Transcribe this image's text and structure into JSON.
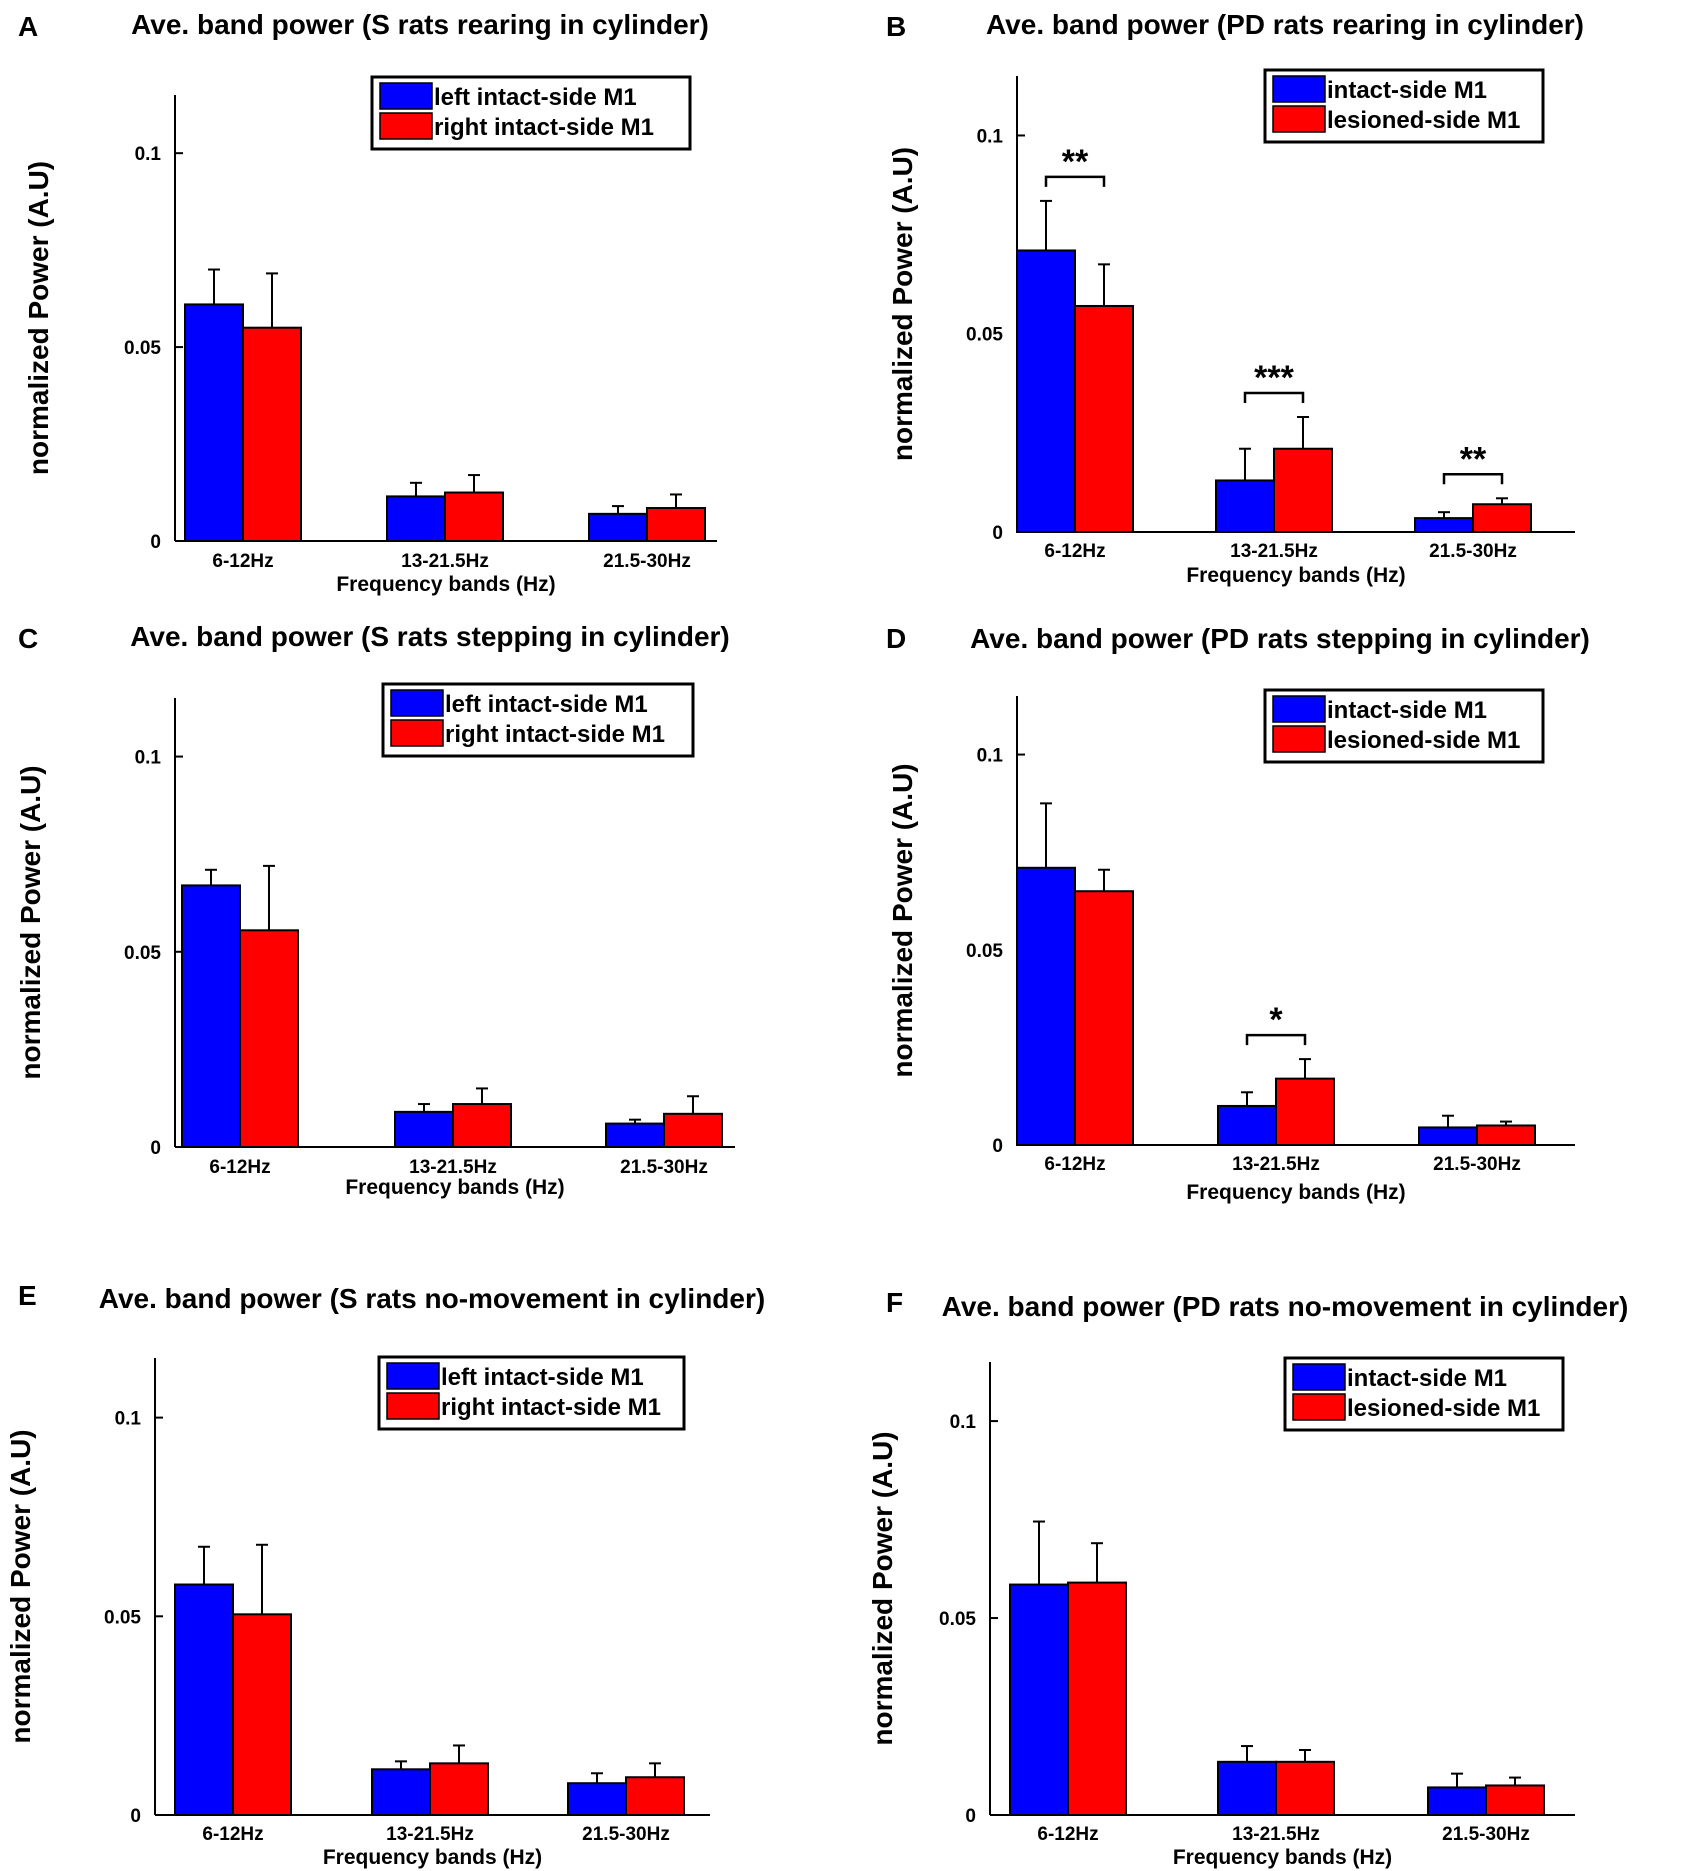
{
  "colors": {
    "blue": "#0000ff",
    "red": "#ff0000",
    "axis": "#000000"
  },
  "chart_data": [
    {
      "type": "bar",
      "panel_label": "A",
      "title": "Ave. band power (S rats rearing in cylinder)",
      "xlabel": "Frequency bands (Hz)",
      "ylabel": "normalized Power (A.U)",
      "ylim": [
        0,
        0.115
      ],
      "yticks": [
        "0",
        "0.05",
        "0.1"
      ],
      "categories": [
        "6-12Hz",
        "13-21.5Hz",
        "21.5-30Hz"
      ],
      "series": [
        {
          "name": "left intact-side M1",
          "color": "#0000ff",
          "values": [
            0.061,
            0.0115,
            0.007
          ],
          "errors": [
            0.009,
            0.0035,
            0.002
          ]
        },
        {
          "name": "right intact-side M1",
          "color": "#ff0000",
          "values": [
            0.055,
            0.0125,
            0.0085
          ],
          "errors": [
            0.014,
            0.0045,
            0.0035
          ]
        }
      ],
      "significance": []
    },
    {
      "type": "bar",
      "panel_label": "B",
      "title": "Ave. band power (PD rats rearing in cylinder)",
      "xlabel": "Frequency bands (Hz)",
      "ylabel": "normalized Power (A.U)",
      "ylim": [
        0,
        0.115
      ],
      "yticks": [
        "0",
        "0.05",
        "0.1"
      ],
      "categories": [
        "6-12Hz",
        "13-21.5Hz",
        "21.5-30Hz"
      ],
      "series": [
        {
          "name": "intact-side M1",
          "color": "#0000ff",
          "values": [
            0.071,
            0.013,
            0.0035
          ],
          "errors": [
            0.0125,
            0.008,
            0.0015
          ]
        },
        {
          "name": "lesioned-side M1",
          "color": "#ff0000",
          "values": [
            0.057,
            0.021,
            0.007
          ],
          "errors": [
            0.0105,
            0.008,
            0.0015
          ]
        }
      ],
      "significance": [
        {
          "category": 0,
          "label": "**"
        },
        {
          "category": 1,
          "label": "***"
        },
        {
          "category": 2,
          "label": "**"
        }
      ]
    },
    {
      "type": "bar",
      "panel_label": "C",
      "title": "Ave. band power (S rats stepping in cylinder)",
      "xlabel": "Frequency bands (Hz)",
      "ylabel": "normalized Power (A.U)",
      "ylim": [
        0,
        0.115
      ],
      "yticks": [
        "0",
        "0.05",
        "0.1"
      ],
      "categories": [
        "6-12Hz",
        "13-21.5Hz",
        "21.5-30Hz"
      ],
      "series": [
        {
          "name": "left intact-side M1",
          "color": "#0000ff",
          "values": [
            0.067,
            0.009,
            0.006
          ],
          "errors": [
            0.004,
            0.002,
            0.001
          ]
        },
        {
          "name": "right intact-side M1",
          "color": "#ff0000",
          "values": [
            0.0555,
            0.011,
            0.0085
          ],
          "errors": [
            0.0165,
            0.004,
            0.0045
          ]
        }
      ],
      "significance": []
    },
    {
      "type": "bar",
      "panel_label": "D",
      "title": "Ave. band power (PD rats stepping in cylinder)",
      "xlabel": "Frequency bands (Hz)",
      "ylabel": "normalized Power (A.U)",
      "ylim": [
        0,
        0.115
      ],
      "yticks": [
        "0",
        "0.05",
        "0.1"
      ],
      "categories": [
        "6-12Hz",
        "13-21.5Hz",
        "21.5-30Hz"
      ],
      "series": [
        {
          "name": "intact-side M1",
          "color": "#0000ff",
          "values": [
            0.071,
            0.01,
            0.0045
          ],
          "errors": [
            0.0165,
            0.0035,
            0.003
          ]
        },
        {
          "name": "lesioned-side M1",
          "color": "#ff0000",
          "values": [
            0.065,
            0.017,
            0.005
          ],
          "errors": [
            0.0055,
            0.005,
            0.001
          ]
        }
      ],
      "significance": [
        {
          "category": 1,
          "label": "*"
        }
      ]
    },
    {
      "type": "bar",
      "panel_label": "E",
      "title": "Ave. band power (S rats  no-movement in cylinder)",
      "xlabel": "Frequency bands (Hz)",
      "ylabel": "normalized Power (A.U)",
      "ylim": [
        0,
        0.115
      ],
      "yticks": [
        "0",
        "0.05",
        "0.1"
      ],
      "categories": [
        "6-12Hz",
        "13-21.5Hz",
        "21.5-30Hz"
      ],
      "series": [
        {
          "name": "left intact-side M1",
          "color": "#0000ff",
          "values": [
            0.058,
            0.0115,
            0.008
          ],
          "errors": [
            0.0095,
            0.002,
            0.0025
          ]
        },
        {
          "name": "right intact-side M1",
          "color": "#ff0000",
          "values": [
            0.0505,
            0.013,
            0.0095
          ],
          "errors": [
            0.0175,
            0.0045,
            0.0035
          ]
        }
      ],
      "significance": []
    },
    {
      "type": "bar",
      "panel_label": "F",
      "title": "Ave. band power (PD rats no-movement in cylinder)",
      "xlabel": "Frequency bands (Hz)",
      "ylabel": "normalized Power (A.U)",
      "ylim": [
        0,
        0.115
      ],
      "yticks": [
        "0",
        "0.05",
        "0.1"
      ],
      "categories": [
        "6-12Hz",
        "13-21.5Hz",
        "21.5-30Hz"
      ],
      "series": [
        {
          "name": "intact-side M1",
          "color": "#0000ff",
          "values": [
            0.0585,
            0.0135,
            0.007
          ],
          "errors": [
            0.016,
            0.004,
            0.0035
          ]
        },
        {
          "name": "lesioned-side M1",
          "color": "#ff0000",
          "values": [
            0.059,
            0.0135,
            0.0075
          ],
          "errors": [
            0.01,
            0.003,
            0.002
          ]
        }
      ],
      "significance": []
    }
  ]
}
